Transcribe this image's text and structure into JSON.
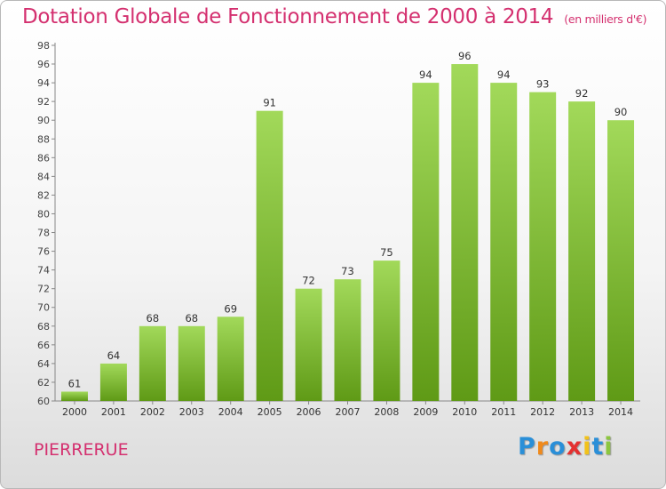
{
  "title": "Dotation Globale de Fonctionnement de 2000 à 2014",
  "subtitle": "(en milliers d'€)",
  "commune": "PIERRERUE",
  "logo": {
    "letters": [
      "P",
      "r",
      "o",
      "x",
      "i",
      "t",
      "i"
    ],
    "colors": [
      "#2a8fd8",
      "#f08a1c",
      "#2a8fd8",
      "#e43030",
      "#f2c21a",
      "#2a8fd8",
      "#8cc63f"
    ]
  },
  "colors": {
    "bar_light": "#a2d95a",
    "bar_dark": "#5f9a16",
    "title": "#d4306f"
  },
  "chart_data": {
    "type": "bar",
    "categories": [
      "2000",
      "2001",
      "2002",
      "2003",
      "2004",
      "2005",
      "2006",
      "2007",
      "2008",
      "2009",
      "2010",
      "2011",
      "2012",
      "2013",
      "2014"
    ],
    "values": [
      61,
      64,
      68,
      68,
      69,
      91,
      72,
      73,
      75,
      94,
      96,
      94,
      93,
      92,
      90
    ],
    "ylim": [
      60,
      98
    ],
    "ytick_step": 2,
    "grid": false,
    "data_labels": true
  }
}
